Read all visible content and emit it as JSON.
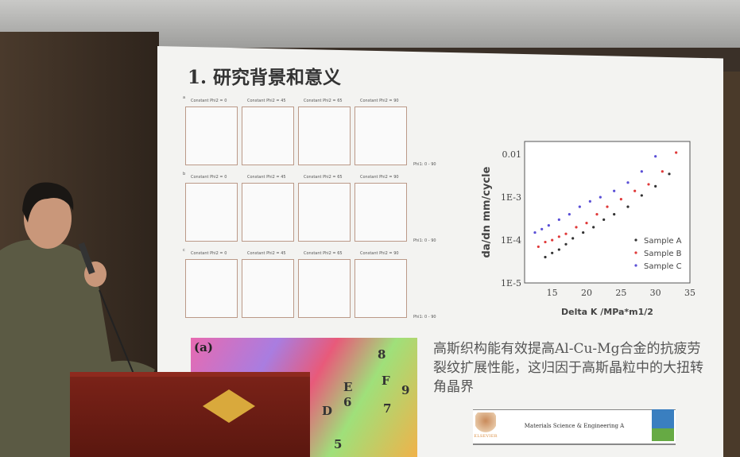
{
  "slide": {
    "title": "1. 研究背景和意义",
    "pole_figures": {
      "rows": [
        {
          "label": "a",
          "columns": [
            "Constant Phi2 = 0",
            "Constant Phi2 = 45",
            "Constant Phi2 = 65",
            "Constant Phi2 = 90"
          ],
          "axis": "Phi1: 0 - 90"
        },
        {
          "label": "b",
          "columns": [
            "Constant Phi2 = 0",
            "Constant Phi2 = 45",
            "Constant Phi2 = 65",
            "Constant Phi2 = 90"
          ],
          "axis": "Phi1: 0 - 90"
        },
        {
          "label": "c",
          "columns": [
            "Constant Phi2 = 0",
            "Constant Phi2 = 45",
            "Constant Phi2 = 65",
            "Constant Phi2 = 90"
          ],
          "axis": "Phi1: 0 - 90"
        }
      ]
    },
    "caption": "高斯织构能有效提高Al-Cu-Mg合金的抗疲劳裂纹扩展性能，这归因于高斯晶粒中的大扭转角晶界",
    "micrograph": {
      "label": "(a)",
      "grain_labels": [
        "8",
        "9",
        "F",
        "E",
        "D",
        "6",
        "7",
        "5"
      ]
    },
    "journal": {
      "title": "Materials Science & Engineering A",
      "publisher": "ELSEVIER"
    }
  },
  "chart_data": {
    "type": "scatter",
    "xlabel": "Delta K /MPa*m1/2",
    "ylabel": "da/dn mm/cycle",
    "xlim": [
      11,
      35
    ],
    "ylim": [
      1e-05,
      0.02
    ],
    "yscale": "log",
    "xticks": [
      15,
      20,
      25,
      30,
      35
    ],
    "yticks": [
      {
        "v": 0.01,
        "label": "0.01"
      },
      {
        "v": 0.001,
        "label": "1E-3"
      },
      {
        "v": 0.0001,
        "label": "1E-4"
      },
      {
        "v": 1e-05,
        "label": "1E-5"
      }
    ],
    "legend": "bottom-right",
    "series": [
      {
        "name": "Sample A",
        "color": "#333333",
        "points": [
          [
            14,
            4e-05
          ],
          [
            15,
            5e-05
          ],
          [
            16,
            6e-05
          ],
          [
            17,
            8e-05
          ],
          [
            18,
            0.00011
          ],
          [
            19.5,
            0.00015
          ],
          [
            21,
            0.0002
          ],
          [
            22.5,
            0.0003
          ],
          [
            24,
            0.0004
          ],
          [
            26,
            0.0006
          ],
          [
            28,
            0.0011
          ],
          [
            30,
            0.0018
          ],
          [
            32,
            0.0035
          ]
        ]
      },
      {
        "name": "Sample B",
        "color": "#e03a3a",
        "points": [
          [
            13,
            7e-05
          ],
          [
            14,
            9e-05
          ],
          [
            15,
            0.0001
          ],
          [
            16,
            0.00012
          ],
          [
            17,
            0.00014
          ],
          [
            18.5,
            0.0002
          ],
          [
            20,
            0.00025
          ],
          [
            21.5,
            0.0004
          ],
          [
            23,
            0.0006
          ],
          [
            25,
            0.0009
          ],
          [
            27,
            0.0014
          ],
          [
            29,
            0.002
          ],
          [
            31,
            0.004
          ],
          [
            33,
            0.011
          ]
        ]
      },
      {
        "name": "Sample C",
        "color": "#5a4fd6",
        "points": [
          [
            12.5,
            0.00015
          ],
          [
            13.5,
            0.00018
          ],
          [
            14.5,
            0.00022
          ],
          [
            16,
            0.0003
          ],
          [
            17.5,
            0.0004
          ],
          [
            19,
            0.0006
          ],
          [
            20.5,
            0.0008
          ],
          [
            22,
            0.001
          ],
          [
            24,
            0.0014
          ],
          [
            26,
            0.0022
          ],
          [
            28,
            0.004
          ],
          [
            30,
            0.009
          ]
        ]
      }
    ]
  }
}
